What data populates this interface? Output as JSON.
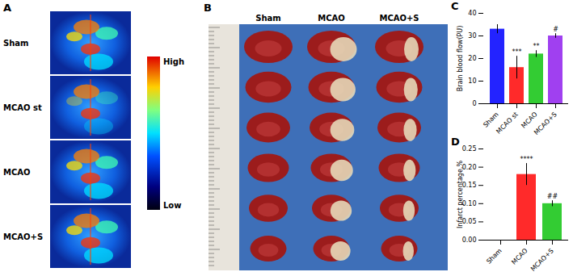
{
  "panel_a": {
    "label": "A",
    "rows": [
      "Sham",
      "MCAO st",
      "MCAO",
      "MCAO+S"
    ],
    "colorbar": {
      "high": "High",
      "low": "Low"
    }
  },
  "panel_b": {
    "label": "B",
    "columns": [
      "Sham",
      "MCAO",
      "MCAO+S"
    ]
  },
  "chart_data": [
    {
      "type": "bar",
      "title": "C",
      "categories": [
        "Sham",
        "MCAO st",
        "MCAO",
        "MCAO+S"
      ],
      "values": [
        33,
        16,
        22,
        30
      ],
      "errors": [
        2,
        5,
        1.5,
        1
      ],
      "annotations": [
        null,
        "***",
        "**",
        "#"
      ],
      "colors": [
        "#2323ff",
        "#ff2a2a",
        "#33cc33",
        "#a040f0"
      ],
      "y_label": "Brain blood flow(PU)",
      "ylim": [
        0,
        40
      ],
      "yticks": [
        0,
        10,
        20,
        30,
        40
      ]
    },
    {
      "type": "bar",
      "title": "D",
      "categories": [
        "Sham",
        "MCAO",
        "MCAO+S"
      ],
      "values": [
        0,
        0.18,
        0.1
      ],
      "errors": [
        0,
        0.03,
        0.008
      ],
      "annotations": [
        null,
        "****",
        "##"
      ],
      "colors": [
        "#2323ff",
        "#ff2a2a",
        "#33cc33"
      ],
      "y_label": "Infarct percentage,%",
      "ylim": [
        0,
        0.25
      ],
      "yticks": [
        {
          "value": 0,
          "label": "0.00"
        },
        {
          "value": 0.05,
          "label": "0.05"
        },
        {
          "value": 0.1,
          "label": "0.10"
        },
        {
          "value": 0.15,
          "label": "0.15"
        },
        {
          "value": 0.2,
          "label": "0.20"
        },
        {
          "value": 0.25,
          "label": "0.25"
        }
      ]
    }
  ]
}
